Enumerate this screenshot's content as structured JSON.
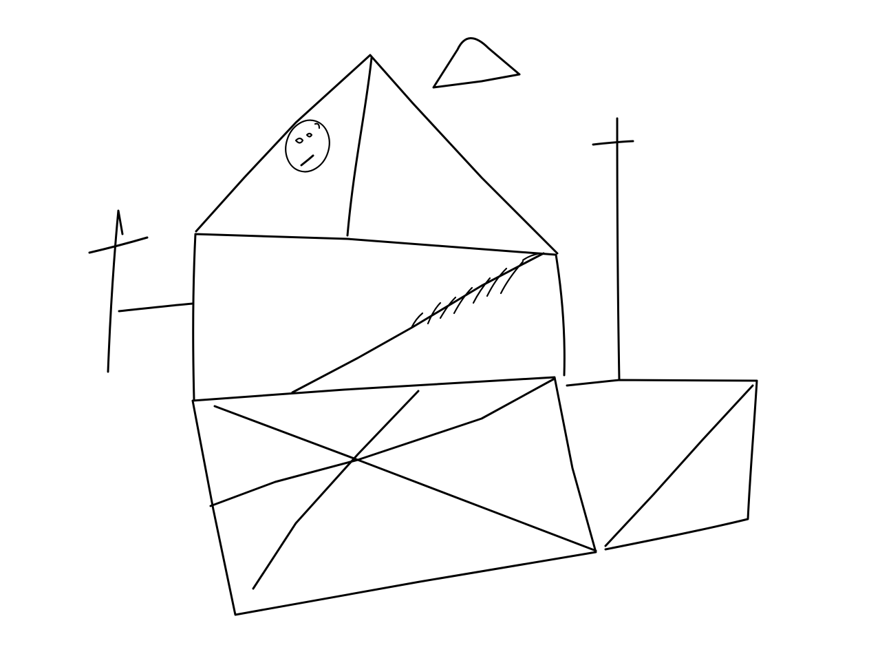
{
  "drawing": {
    "style": "hand-drawn line sketch",
    "ink_color": "#000000",
    "background_color": "#ffffff",
    "elements": [
      "triangle-roof",
      "roof-vertical-line",
      "face-circle",
      "small-triangle",
      "left-cross",
      "left-pole-arm",
      "right-cross",
      "middle-box",
      "middle-box-diagonal",
      "diagonal-hatching",
      "lower-quad",
      "lower-quad-crossing-lines",
      "right-box",
      "right-box-diagonal"
    ]
  }
}
